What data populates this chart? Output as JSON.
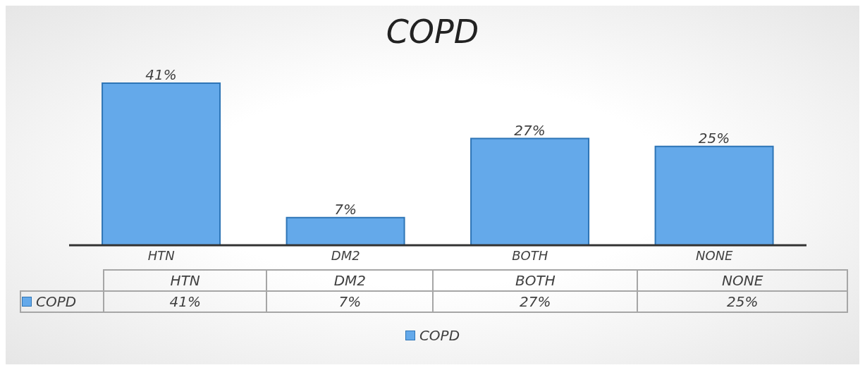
{
  "chart_data": {
    "type": "bar",
    "title": "COPD",
    "categories": [
      "HTN",
      "DM2",
      "BOTH",
      "NONE"
    ],
    "series": [
      {
        "name": "COPD",
        "color": "#64a9ea",
        "values": [
          41,
          7,
          27,
          25
        ],
        "value_labels": [
          "41%",
          "7%",
          "27%",
          "25%"
        ]
      }
    ],
    "legend": "bottom"
  }
}
